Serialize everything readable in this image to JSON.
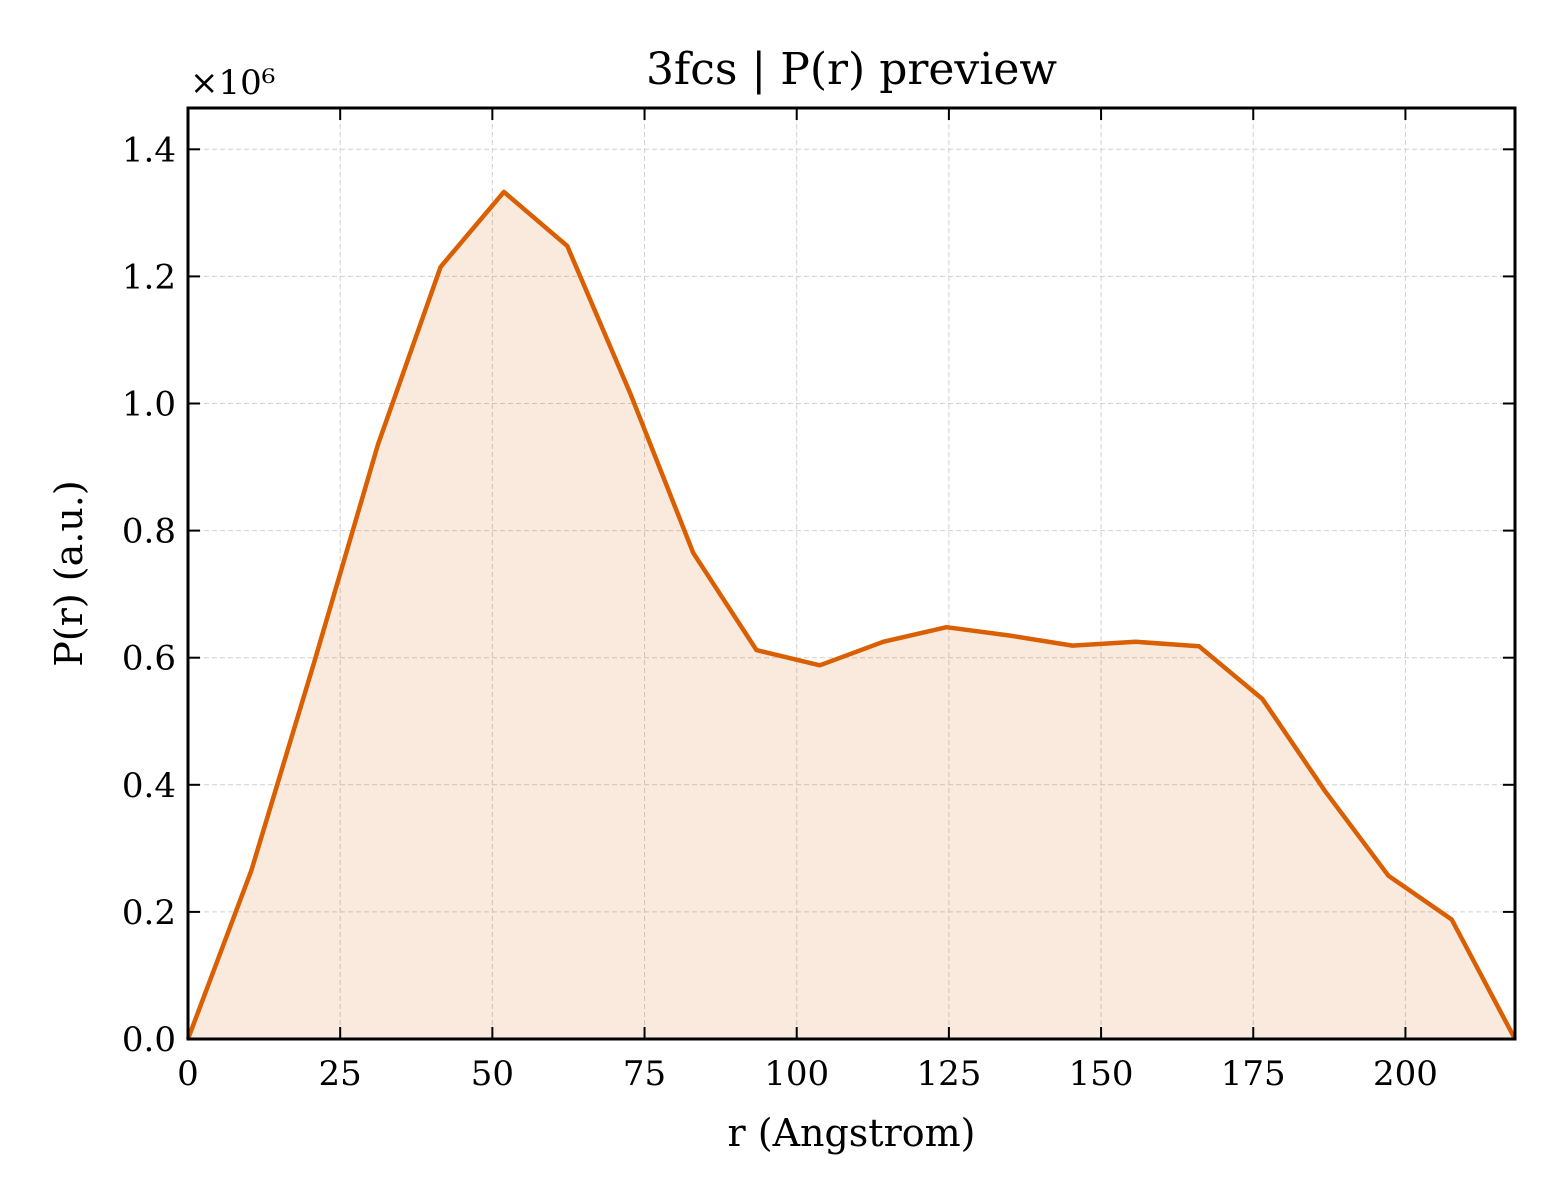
{
  "chart_data": {
    "type": "area",
    "title": "3fcs | P(r) preview",
    "xlabel": "r (Angstrom)",
    "ylabel": "P(r) (a.u.)",
    "y_multiplier_label": "×10⁶",
    "xlim": [
      0,
      218
    ],
    "ylim": [
      0,
      1.465
    ],
    "y_scale_factor": 1000000,
    "grid": true,
    "legend": "none",
    "xticks": [
      0,
      25,
      50,
      75,
      100,
      125,
      150,
      175,
      200
    ],
    "xtick_labels": [
      "0",
      "25",
      "50",
      "75",
      "100",
      "125",
      "150",
      "175",
      "200"
    ],
    "yticks": [
      0.0,
      0.2,
      0.4,
      0.6,
      0.8,
      1.0,
      1.2,
      1.4
    ],
    "ytick_labels": [
      "0.0",
      "0.2",
      "0.4",
      "0.6",
      "0.8",
      "1.0",
      "1.2",
      "1.4"
    ],
    "series": [
      {
        "color": "#d95f02",
        "fill_color": "#d95f02",
        "fill_opacity": 0.13,
        "x": [
          0,
          10.4,
          20.8,
          31.2,
          41.5,
          51.9,
          62.3,
          72.7,
          83.0,
          93.4,
          103.8,
          114.2,
          124.6,
          134.9,
          145.3,
          155.7,
          166.1,
          176.5,
          186.8,
          197.2,
          207.6,
          218.0
        ],
        "y": [
          0.0,
          0.265,
          0.595,
          0.935,
          1.215,
          1.333,
          1.248,
          1.015,
          0.765,
          0.612,
          0.588,
          0.625,
          0.648,
          0.635,
          0.619,
          0.625,
          0.618,
          0.535,
          0.39,
          0.257,
          0.188,
          0.0
        ]
      }
    ]
  }
}
